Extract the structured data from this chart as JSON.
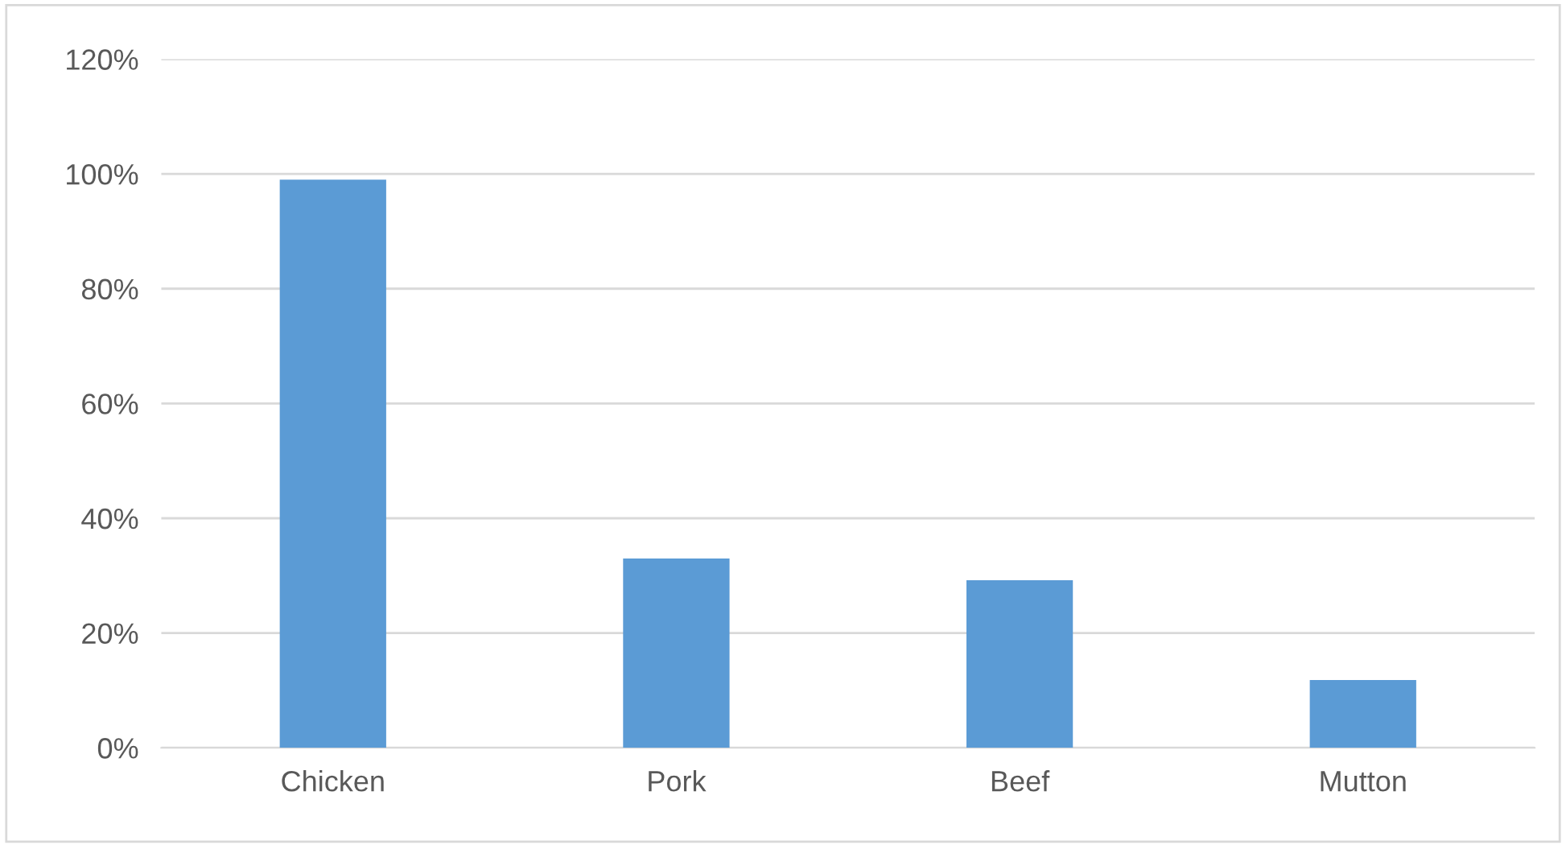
{
  "chart_data": {
    "type": "bar",
    "categories": [
      "Chicken",
      "Pork",
      "Beef",
      "Mutton"
    ],
    "values": [
      99,
      33,
      29.2,
      11.8
    ],
    "color": "#5b9bd5",
    "ylim": [
      0,
      120
    ],
    "yticks": [
      {
        "value": 0,
        "label": "0%"
      },
      {
        "value": 20,
        "label": "20%"
      },
      {
        "value": 40,
        "label": "40%"
      },
      {
        "value": 60,
        "label": "60%"
      },
      {
        "value": 80,
        "label": "80%"
      },
      {
        "value": 100,
        "label": "100%"
      },
      {
        "value": 120,
        "label": "120%"
      }
    ],
    "grid": "y"
  }
}
